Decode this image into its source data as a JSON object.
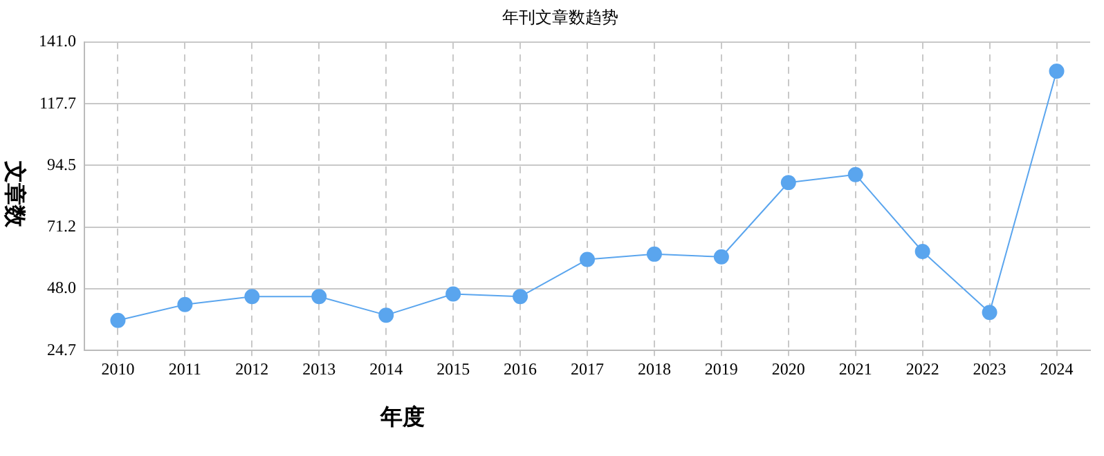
{
  "chart_data": {
    "type": "line",
    "title": "年刊文章数趋势",
    "xlabel": "年度",
    "ylabel": "文章数",
    "categories": [
      "2010",
      "2011",
      "2012",
      "2013",
      "2014",
      "2015",
      "2016",
      "2017",
      "2018",
      "2019",
      "2020",
      "2021",
      "2022",
      "2023",
      "2024"
    ],
    "series": [
      {
        "color": "#5aa5ee",
        "values": [
          36,
          42,
          45,
          45,
          38,
          46,
          45,
          59,
          61,
          60,
          88,
          91,
          62,
          39,
          130
        ]
      }
    ],
    "ylim": [
      24.7,
      141.0
    ],
    "yticks": [
      24.7,
      {
        "value": 48.0,
        "label": "48.0"
      },
      71.2,
      94.5,
      117.7,
      {
        "value": 141.0,
        "label": "141.0"
      }
    ],
    "grid": true,
    "legend": false,
    "marker": "circle",
    "line_style": "solid"
  }
}
